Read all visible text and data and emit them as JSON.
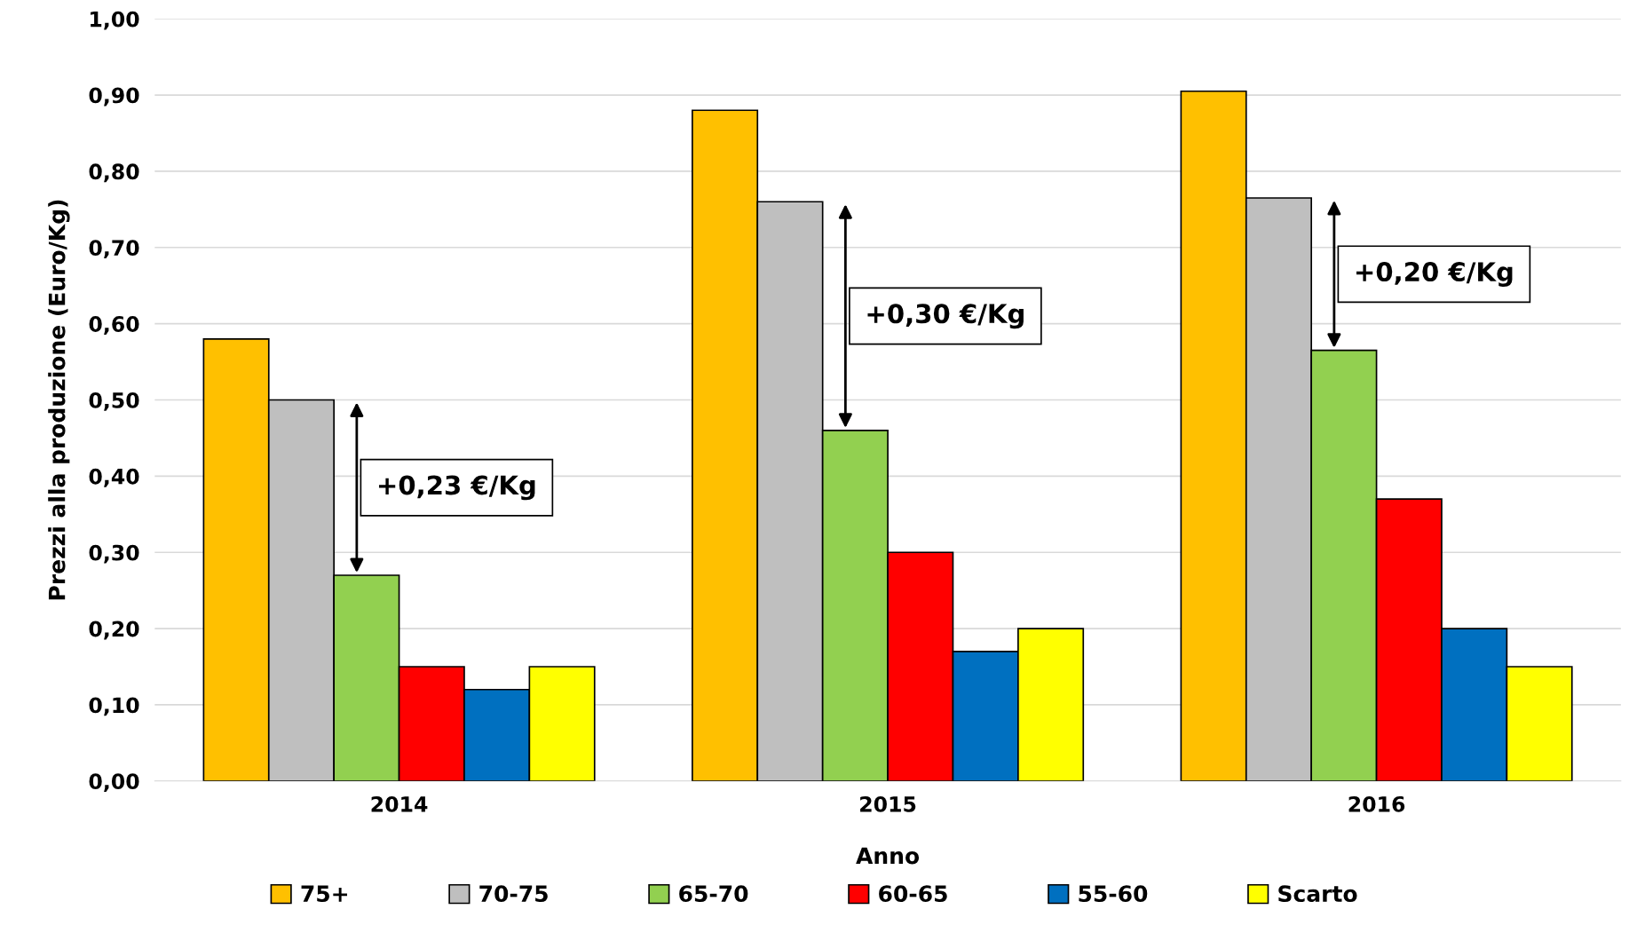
{
  "chart_data": {
    "type": "bar",
    "xlabel": "Anno",
    "ylabel": "Prezzi alla produzione (Euro/Kg)",
    "categories": [
      "2014",
      "2015",
      "2016"
    ],
    "series": [
      {
        "name": "75+",
        "color": "#ffc000",
        "values": [
          0.58,
          0.88,
          0.905
        ]
      },
      {
        "name": "70-75",
        "color": "#bfbfbf",
        "values": [
          0.5,
          0.76,
          0.765
        ]
      },
      {
        "name": "65-70",
        "color": "#92d050",
        "values": [
          0.27,
          0.46,
          0.565
        ]
      },
      {
        "name": "60-65",
        "color": "#ff0000",
        "values": [
          0.15,
          0.3,
          0.37
        ]
      },
      {
        "name": "55-60",
        "color": "#0070c0",
        "values": [
          0.12,
          0.17,
          0.2
        ]
      },
      {
        "name": "Scarto",
        "color": "#ffff00",
        "values": [
          0.15,
          0.2,
          0.15
        ]
      }
    ],
    "ylim": [
      0,
      1.0
    ],
    "yticks": [
      {
        "value": 0,
        "label": "0,00"
      },
      {
        "value": 0.1,
        "label": "0,10"
      },
      {
        "value": 0.2,
        "label": "0,20"
      },
      {
        "value": 0.3,
        "label": "0,30"
      },
      {
        "value": 0.4,
        "label": "0,40"
      },
      {
        "value": 0.5,
        "label": "0,50"
      },
      {
        "value": 0.6,
        "label": "0,60"
      },
      {
        "value": 0.7,
        "label": "0,70"
      },
      {
        "value": 0.8,
        "label": "0,80"
      },
      {
        "value": 0.9,
        "label": "0,90"
      },
      {
        "value": 1.0,
        "label": "1,00"
      }
    ],
    "annotations": [
      "+0,23 €/Kg",
      "+0,30 €/Kg",
      "+0,20 €/Kg"
    ],
    "grid": "y",
    "legend": "bottom"
  }
}
